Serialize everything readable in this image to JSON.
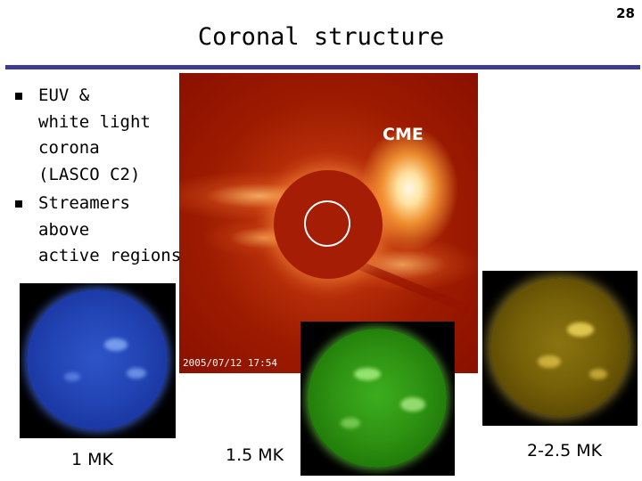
{
  "slide": {
    "number": "28",
    "title": "Coronal structure"
  },
  "bullets": [
    {
      "lines": [
        "EUV &",
        "white light",
        "corona",
        "(LASCO C2)"
      ]
    },
    {
      "lines": [
        "Streamers",
        "above",
        "active regions"
      ]
    }
  ],
  "lasco_image": {
    "cme_label": "CME",
    "timestamp": "2005/07/12 17:54"
  },
  "eit_images": [
    {
      "color": "#2244b4",
      "caption": "1 MK"
    },
    {
      "color": "#2e9212",
      "caption": "1.5 MK"
    },
    {
      "color": "#756008",
      "caption": "2-2.5 MK"
    }
  ]
}
